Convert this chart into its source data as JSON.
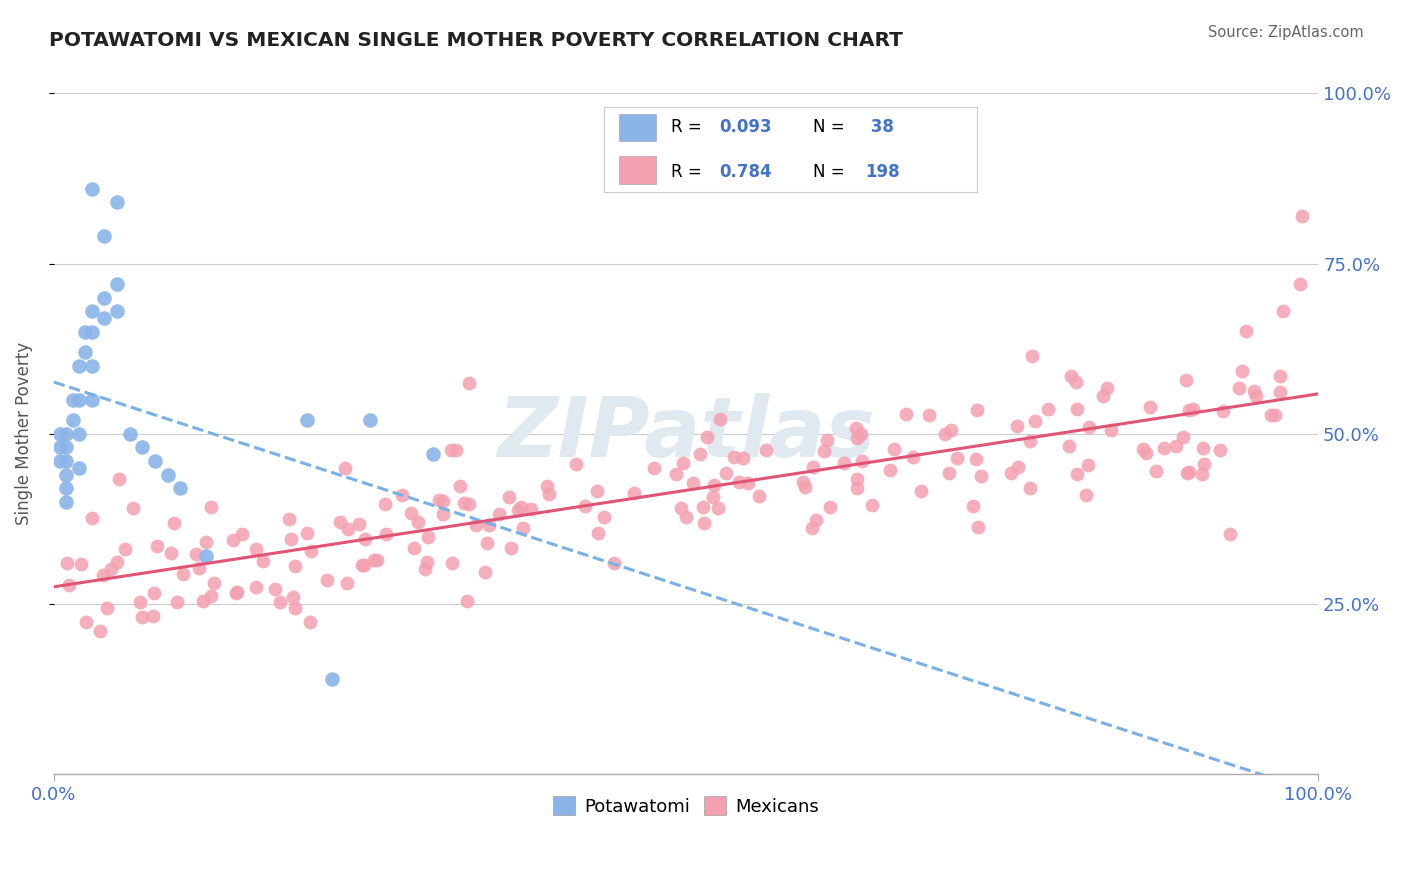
{
  "title": "POTAWATOMI VS MEXICAN SINGLE MOTHER POVERTY CORRELATION CHART",
  "source": "Source: ZipAtlas.com",
  "ylabel": "Single Mother Poverty",
  "xlim": [
    0.0,
    1.0
  ],
  "ylim": [
    0.0,
    1.0
  ],
  "y_tick_vals": [
    0.25,
    0.5,
    0.75,
    1.0
  ],
  "y_tick_labels": [
    "25.0%",
    "50.0%",
    "75.0%",
    "100.0%"
  ],
  "x_tick_labels": [
    "0.0%",
    "100.0%"
  ],
  "watermark_text": "ZIPatlas",
  "legend_line1": "R = 0.093   N =  38",
  "legend_line2": "R = 0.784   N = 198",
  "color_potawatomi": "#8ab4e8",
  "color_mexicans": "#f4a0b0",
  "color_line_potawatomi": "#7ab0e8",
  "color_line_mexicans": "#e05575",
  "color_axis_text": "#4472c4",
  "color_title": "#222222",
  "color_source": "#666666",
  "background_color": "#ffffff",
  "watermark_color": "#e0e8f0",
  "seed": 42
}
